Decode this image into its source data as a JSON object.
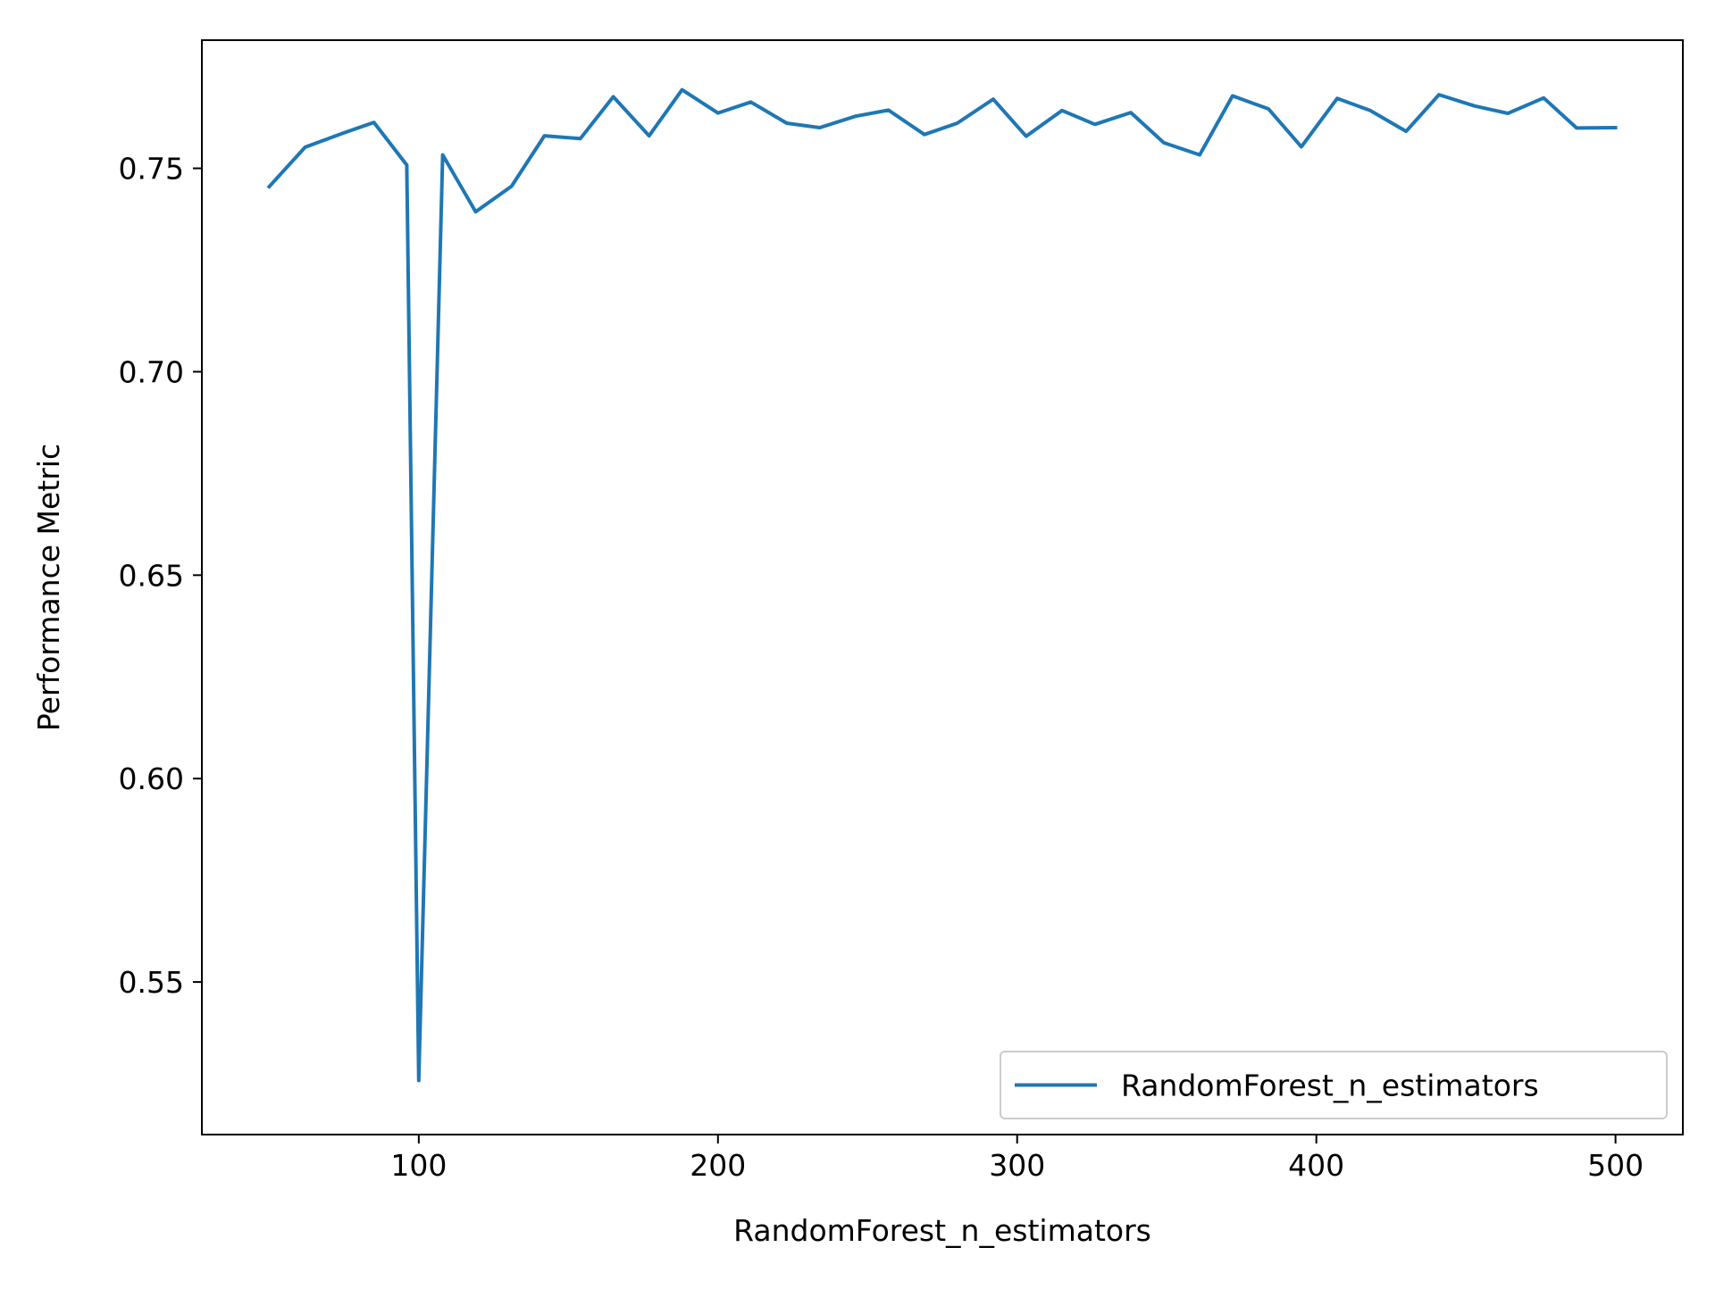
{
  "chart_data": {
    "type": "line",
    "title": "",
    "xlabel": "RandomForest_n_estimators",
    "ylabel": "Performance Metric",
    "xlim": [
      27.5,
      522.5
    ],
    "ylim": [
      0.5125,
      0.7815
    ],
    "xticks": [
      100,
      200,
      300,
      400,
      500
    ],
    "xtick_labels": [
      "100",
      "200",
      "300",
      "400",
      "500"
    ],
    "yticks": [
      0.55,
      0.6,
      0.65,
      0.7,
      0.75
    ],
    "ytick_labels": [
      "0.55",
      "0.60",
      "0.65",
      "0.70",
      "0.75"
    ],
    "grid": false,
    "legend": {
      "position": "lower-right",
      "entries": [
        "RandomForest_n_estimators"
      ]
    },
    "series": [
      {
        "name": "RandomForest_n_estimators",
        "color": "#1f77b4",
        "x": [
          50,
          62,
          73,
          85,
          96,
          100,
          108,
          119,
          131,
          142,
          154,
          165,
          177,
          188,
          200,
          211,
          223,
          234,
          246,
          257,
          269,
          280,
          292,
          303,
          315,
          326,
          338,
          349,
          361,
          372,
          384,
          395,
          407,
          418,
          430,
          441,
          453,
          464,
          476,
          487,
          500
        ],
        "y": [
          0.7455,
          0.7552,
          0.7582,
          0.7613,
          0.7508,
          0.5258,
          0.7533,
          0.7393,
          0.7456,
          0.758,
          0.7573,
          0.7676,
          0.758,
          0.7693,
          0.7636,
          0.7663,
          0.7611,
          0.76,
          0.7628,
          0.7643,
          0.7583,
          0.7611,
          0.767,
          0.7579,
          0.7642,
          0.7608,
          0.7637,
          0.7563,
          0.7533,
          0.7678,
          0.7646,
          0.7553,
          0.7672,
          0.7642,
          0.7591,
          0.7681,
          0.7653,
          0.7635,
          0.7673,
          0.7599,
          0.76
        ]
      }
    ]
  }
}
